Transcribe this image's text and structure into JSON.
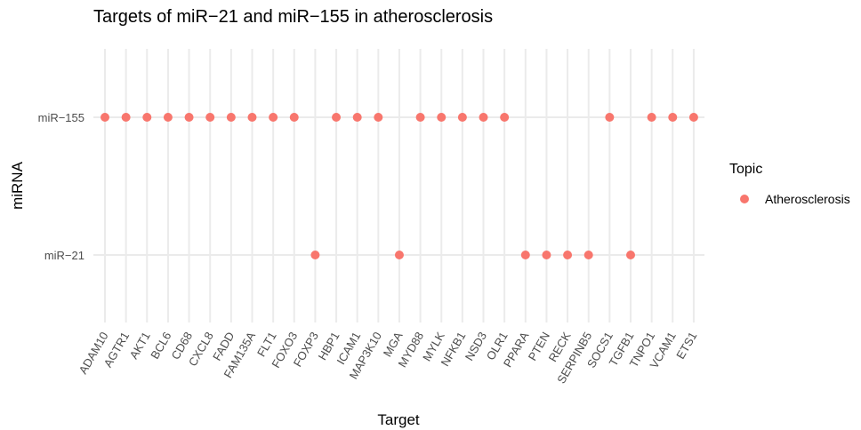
{
  "chart_data": {
    "type": "scatter",
    "title": "Targets of miR−21 and miR−155 in atherosclerosis",
    "xlabel": "Target",
    "ylabel": "miRNA",
    "x_categories": [
      "ADAM10",
      "AGTR1",
      "AKT1",
      "BCL6",
      "CD68",
      "CXCL8",
      "FADD",
      "FAM135A",
      "FLT1",
      "FOXO3",
      "FOXP3",
      "HBP1",
      "ICAM1",
      "MAP3K10",
      "MGA",
      "MYD88",
      "MYLK",
      "NFKB1",
      "NSD3",
      "OLR1",
      "PPARA",
      "PTEN",
      "RECK",
      "SERPINB5",
      "SOCS1",
      "TGFB1",
      "TNPO1",
      "VCAM1",
      "ETS1"
    ],
    "y_categories": [
      "miR−21",
      "miR−155"
    ],
    "legend": {
      "title": "Topic",
      "position": "right",
      "entries": [
        {
          "label": "Atherosclerosis",
          "color": "#f8766d"
        }
      ]
    },
    "grid": true,
    "series": [
      {
        "name": "Atherosclerosis",
        "color": "#f8766d",
        "points": [
          {
            "x": "ADAM10",
            "y": "miR−155"
          },
          {
            "x": "AGTR1",
            "y": "miR−155"
          },
          {
            "x": "AKT1",
            "y": "miR−155"
          },
          {
            "x": "BCL6",
            "y": "miR−155"
          },
          {
            "x": "CD68",
            "y": "miR−155"
          },
          {
            "x": "CXCL8",
            "y": "miR−155"
          },
          {
            "x": "FADD",
            "y": "miR−155"
          },
          {
            "x": "FAM135A",
            "y": "miR−155"
          },
          {
            "x": "FLT1",
            "y": "miR−155"
          },
          {
            "x": "FOXO3",
            "y": "miR−155"
          },
          {
            "x": "HBP1",
            "y": "miR−155"
          },
          {
            "x": "ICAM1",
            "y": "miR−155"
          },
          {
            "x": "MAP3K10",
            "y": "miR−155"
          },
          {
            "x": "MYD88",
            "y": "miR−155"
          },
          {
            "x": "MYLK",
            "y": "miR−155"
          },
          {
            "x": "NFKB1",
            "y": "miR−155"
          },
          {
            "x": "NSD3",
            "y": "miR−155"
          },
          {
            "x": "OLR1",
            "y": "miR−155"
          },
          {
            "x": "SOCS1",
            "y": "miR−155"
          },
          {
            "x": "TNPO1",
            "y": "miR−155"
          },
          {
            "x": "VCAM1",
            "y": "miR−155"
          },
          {
            "x": "ETS1",
            "y": "miR−155"
          },
          {
            "x": "FOXP3",
            "y": "miR−21"
          },
          {
            "x": "MGA",
            "y": "miR−21"
          },
          {
            "x": "PPARA",
            "y": "miR−21"
          },
          {
            "x": "PTEN",
            "y": "miR−21"
          },
          {
            "x": "RECK",
            "y": "miR−21"
          },
          {
            "x": "SERPINB5",
            "y": "miR−21"
          },
          {
            "x": "TGFB1",
            "y": "miR−21"
          }
        ]
      }
    ]
  }
}
